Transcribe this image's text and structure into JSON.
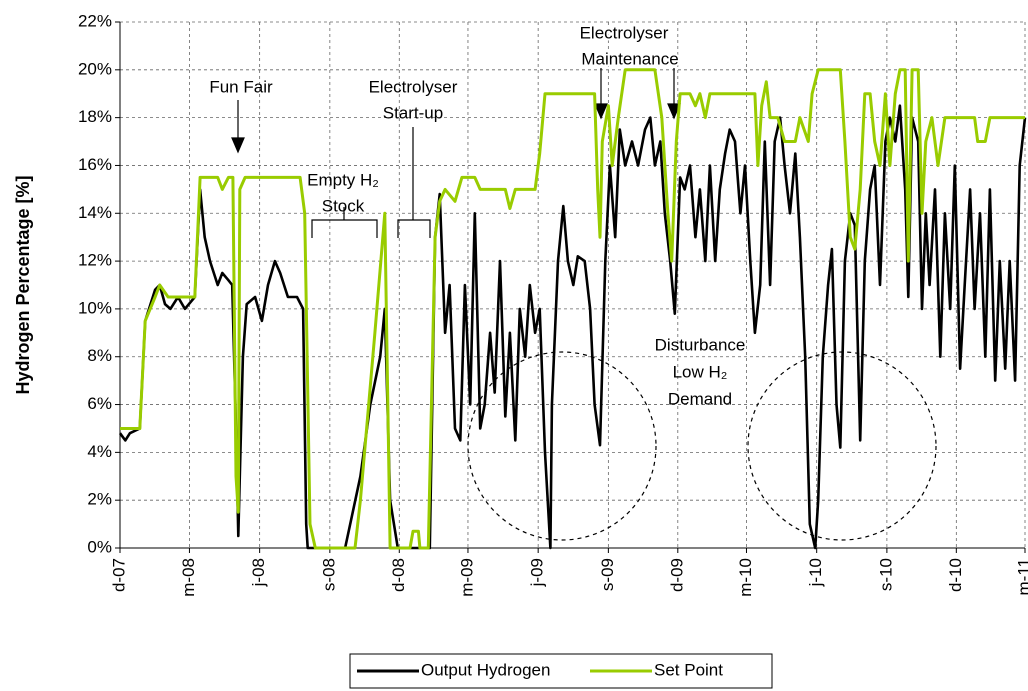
{
  "chart_data": {
    "type": "line",
    "y_label": "Hydrogen Percentage [%]",
    "xlim": [
      39417,
      40603
    ],
    "xticks": [
      {
        "value": 39417,
        "label": "d-07"
      },
      {
        "value": 39508,
        "label": "m-08"
      },
      {
        "value": 39600,
        "label": "j-08"
      },
      {
        "value": 39692,
        "label": "s-08"
      },
      {
        "value": 39783,
        "label": "d-08"
      },
      {
        "value": 39873,
        "label": "m-09"
      },
      {
        "value": 39965,
        "label": "j-09"
      },
      {
        "value": 40057,
        "label": "s-09"
      },
      {
        "value": 40148,
        "label": "d-09"
      },
      {
        "value": 40238,
        "label": "m-10"
      },
      {
        "value": 40330,
        "label": "j-10"
      },
      {
        "value": 40422,
        "label": "s-10"
      },
      {
        "value": 40513,
        "label": "d-10"
      },
      {
        "value": 40603,
        "label": "m-11"
      }
    ],
    "ylim": [
      0,
      22
    ],
    "yticks": [
      {
        "value": 0,
        "label": "0%"
      },
      {
        "value": 2,
        "label": "2%"
      },
      {
        "value": 4,
        "label": "4%"
      },
      {
        "value": 6,
        "label": "6%"
      },
      {
        "value": 8,
        "label": "8%"
      },
      {
        "value": 10,
        "label": "10%"
      },
      {
        "value": 12,
        "label": "12%"
      },
      {
        "value": 14,
        "label": "14%"
      },
      {
        "value": 16,
        "label": "16%"
      },
      {
        "value": 18,
        "label": "18%"
      },
      {
        "value": 20,
        "label": "20%"
      },
      {
        "value": 22,
        "label": "22%"
      }
    ],
    "grid": true,
    "legend": "bottom",
    "annotations": [
      [
        "Fun Fair"
      ],
      [
        "Electrolyser",
        "Start-up"
      ],
      [
        "Empty H₂",
        "Stock"
      ],
      [
        "Electrolyser",
        "Maintenance"
      ],
      [
        "Disturbance",
        "Low H₂",
        "Demand"
      ]
    ],
    "series": [
      {
        "name": "Output Hydrogen",
        "color": "#000000",
        "x": [
          39417,
          39424,
          39430,
          39443,
          39450,
          39463,
          39469,
          39476,
          39483,
          39493,
          39502,
          39515,
          39522,
          39528,
          39535,
          39545,
          39551,
          39559,
          39564,
          39569,
          39572,
          39574,
          39578,
          39583,
          39594,
          39603,
          39611,
          39620,
          39627,
          39637,
          39649,
          39657,
          39661,
          39663,
          39712,
          39732,
          39745,
          39758,
          39764,
          39771,
          39781,
          39823,
          39830,
          39836,
          39843,
          39849,
          39856,
          39863,
          39869,
          39876,
          39882,
          39889,
          39895,
          39902,
          39908,
          39915,
          39922,
          39928,
          39935,
          39941,
          39948,
          39954,
          39961,
          39967,
          39974,
          39981,
          39983,
          39991,
          39998,
          40004,
          40011,
          40017,
          40026,
          40033,
          40039,
          40046,
          40053,
          40059,
          40066,
          40072,
          40079,
          40088,
          40096,
          40105,
          40112,
          40118,
          40125,
          40131,
          40138,
          40144,
          40151,
          40157,
          40164,
          40171,
          40177,
          40184,
          40190,
          40197,
          40203,
          40210,
          40216,
          40223,
          40230,
          40236,
          40243,
          40249,
          40256,
          40262,
          40269,
          40275,
          40282,
          40288,
          40295,
          40302,
          40308,
          40315,
          40321,
          40328,
          40332,
          40338,
          40345,
          40350,
          40356,
          40361,
          40367,
          40374,
          40380,
          40387,
          40393,
          40400,
          40406,
          40413,
          40420,
          40426,
          40433,
          40439,
          40446,
          40450,
          40455,
          40463,
          40468,
          40473,
          40478,
          40485,
          40492,
          40498,
          40505,
          40511,
          40518,
          40524,
          40531,
          40537,
          40544,
          40551,
          40557,
          40564,
          40570,
          40577,
          40583,
          40590,
          40596,
          40603
        ],
        "values": [
          4.8,
          4.5,
          4.8,
          5.0,
          9.5,
          10.8,
          11,
          10.2,
          10,
          10.5,
          10,
          10.5,
          15,
          13,
          12,
          11,
          11.5,
          11.2,
          11,
          5,
          0.5,
          3,
          8,
          10.2,
          10.5,
          9.5,
          11,
          12,
          11.5,
          10.5,
          10.5,
          10,
          1,
          0,
          0,
          3,
          6,
          8,
          10,
          2,
          0,
          0,
          13,
          14.8,
          9,
          11,
          5,
          4.5,
          11,
          6,
          14,
          5,
          6,
          9,
          6.5,
          12,
          5.5,
          9,
          4.5,
          10,
          8,
          11,
          9,
          10,
          4,
          0,
          6,
          12,
          14.3,
          12,
          11,
          12.2,
          12,
          10,
          6,
          4.3,
          12,
          16,
          13,
          17.5,
          16,
          17,
          16,
          17.5,
          18,
          16,
          17,
          14,
          12,
          9.8,
          15.5,
          15,
          16,
          13,
          15,
          12,
          16,
          12,
          15,
          16.5,
          17.5,
          17,
          14,
          16,
          12,
          9,
          11,
          17,
          11,
          17,
          18,
          16,
          14,
          16.5,
          13,
          8,
          1,
          0,
          2,
          8,
          11,
          12.5,
          6,
          4.2,
          12,
          14,
          13.5,
          4.5,
          12,
          15,
          16,
          11,
          17,
          18,
          17,
          18.5,
          15,
          10.5,
          18,
          17,
          10,
          14,
          11,
          15,
          8,
          14,
          10,
          16,
          7.5,
          11,
          15,
          10,
          14,
          8,
          15,
          7,
          12,
          7.5,
          12,
          7,
          16,
          18
        ]
      },
      {
        "name": "Set Point",
        "color": "#99cc00",
        "x": [
          39417,
          39443,
          39450,
          39463,
          39469,
          39480,
          39489,
          39515,
          39522,
          39545,
          39551,
          39559,
          39565,
          39569,
          39572,
          39574,
          39581,
          39653,
          39659,
          39666,
          39673,
          39725,
          39732,
          39751,
          39764,
          39771,
          39784,
          39797,
          39801,
          39808,
          39810,
          39821,
          39830,
          39836,
          39843,
          39856,
          39865,
          39882,
          39889,
          39922,
          39928,
          39935,
          39961,
          39967,
          39974,
          40039,
          40043,
          40046,
          40049,
          40057,
          40062,
          40070,
          40079,
          40118,
          40127,
          40135,
          40140,
          40146,
          40151,
          40164,
          40171,
          40177,
          40184,
          40190,
          40249,
          40253,
          40258,
          40264,
          40269,
          40279,
          40288,
          40302,
          40308,
          40319,
          40324,
          40332,
          40354,
          40361,
          40367,
          40374,
          40380,
          40387,
          40393,
          40400,
          40406,
          40413,
          40420,
          40426,
          40433,
          40439,
          40446,
          40450,
          40455,
          40463,
          40468,
          40473,
          40481,
          40489,
          40498,
          40537,
          40541,
          40551,
          40557,
          40603
        ],
        "values": [
          5.0,
          5.0,
          9.5,
          10.5,
          11,
          10.5,
          10.5,
          10.5,
          15.5,
          15.5,
          15,
          15.5,
          15.5,
          3,
          1.5,
          15,
          15.5,
          15.5,
          14,
          1,
          0,
          0,
          2,
          9,
          14,
          0,
          0,
          0,
          0.7,
          0.7,
          0,
          0,
          13,
          14.5,
          15,
          14.5,
          15.5,
          15.5,
          15,
          15,
          14.2,
          15,
          15,
          16.5,
          19,
          19,
          15,
          13,
          17,
          18.5,
          16,
          18,
          20,
          20,
          18,
          14,
          12,
          17,
          19,
          19,
          18.5,
          19,
          18,
          19,
          19,
          16,
          18.5,
          19.5,
          18,
          18,
          17,
          17,
          18,
          17,
          19,
          20,
          20,
          20,
          17,
          13,
          12.5,
          15,
          19,
          19,
          17,
          16,
          19,
          16,
          19,
          20,
          20,
          12,
          20,
          20,
          14,
          17,
          18,
          16,
          18,
          18,
          17,
          17,
          18,
          18
        ]
      }
    ]
  }
}
